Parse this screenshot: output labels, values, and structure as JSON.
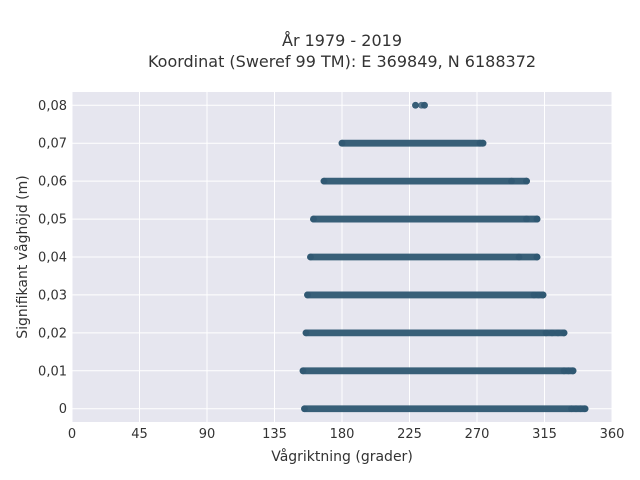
{
  "chart_data": {
    "type": "scatter",
    "title_line1": "År 1979 - 2019",
    "title_line2": "Koordinat (Sweref 99 TM): E 369849, N 6188372",
    "xlabel": "Vågriktning (grader)",
    "ylabel": "Signifikant våghöjd (m)",
    "xlim": [
      0,
      360
    ],
    "ylim": [
      -0.0035,
      0.0835
    ],
    "xticks": [
      0,
      45,
      90,
      135,
      180,
      225,
      270,
      315,
      360
    ],
    "xtick_labels": [
      "0",
      "45",
      "90",
      "135",
      "180",
      "225",
      "270",
      "315",
      "360"
    ],
    "yticks": [
      0,
      0.01,
      0.02,
      0.03,
      0.04,
      0.05,
      0.06,
      0.07,
      0.08
    ],
    "ytick_labels": [
      "0",
      "0,01",
      "0,02",
      "0,03",
      "0,04",
      "0,05",
      "0,06",
      "0,07",
      "0,08"
    ],
    "grid": true,
    "background": "#e6e6ef",
    "marker_color": "#2f5872",
    "bands": [
      {
        "y": 0.0,
        "x_min": 155,
        "x_max": 342,
        "outliers": [
          333,
          336,
          339,
          342
        ]
      },
      {
        "y": 0.01,
        "x_min": 154,
        "x_max": 334,
        "outliers": [
          328,
          331,
          334
        ]
      },
      {
        "y": 0.02,
        "x_min": 156,
        "x_max": 328,
        "outliers": [
          316,
          320,
          324,
          328
        ]
      },
      {
        "y": 0.03,
        "x_min": 157,
        "x_max": 314,
        "outliers": [
          308,
          311,
          314
        ]
      },
      {
        "y": 0.04,
        "x_min": 159,
        "x_max": 310,
        "outliers": [
          298,
          310
        ]
      },
      {
        "y": 0.05,
        "x_min": 161,
        "x_max": 310,
        "outliers": [
          303,
          310
        ]
      },
      {
        "y": 0.06,
        "x_min": 168,
        "x_max": 303,
        "outliers": [
          293,
          303
        ]
      },
      {
        "y": 0.07,
        "x_min": 180,
        "x_max": 274,
        "outliers": [
          272
        ]
      },
      {
        "y": 0.08,
        "x_min": 229,
        "x_max": 235,
        "outliers": [
          229,
          233,
          235
        ]
      }
    ]
  }
}
